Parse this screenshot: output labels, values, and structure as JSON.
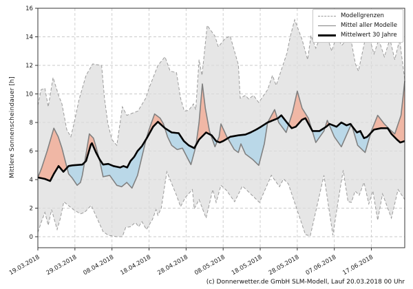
{
  "figure": {
    "ylabel": "Mittlere Sonnenscheindauer [h]",
    "caption": "(c) Donnerwetter.de GmbH SLM-Modell, Lauf 20.03.2018 00 Uhr"
  },
  "legend": {
    "items": [
      {
        "label": "Modellgrenzen",
        "style": "dashed",
        "color": "#9a9a9a"
      },
      {
        "label": "Mittel aller Modelle",
        "style": "solid",
        "color": "#808080"
      },
      {
        "label": "Mittelwert 30 Jahre",
        "style": "thick",
        "color": "#000000"
      }
    ]
  },
  "colors": {
    "model_range_fill": "#dcdcdc",
    "model_bounds_line": "#9a9a9a",
    "model_mean_line": "#808080",
    "mean_30y_line": "#000000",
    "above_normal_fill": "#f0b4a1",
    "below_normal_fill": "#b7d7e8",
    "grid": "#c9c9c9",
    "axis": "#333333"
  },
  "chart_data": {
    "type": "line",
    "title": "",
    "xlabel": "",
    "ylabel": "Mittlere Sonnenscheindauer [h]",
    "ylim": [
      0,
      16
    ],
    "y_ticks": [
      0,
      2,
      4,
      6,
      8,
      10,
      12,
      14,
      16
    ],
    "x_tick_labels": [
      "19.03.2018",
      "29.03.2018",
      "08.04.2018",
      "18.04.2018",
      "28.04.2018",
      "08.05.2018",
      "18.05.2018",
      "28.05.2018",
      "07.06.2018",
      "17.06.2018"
    ],
    "x_tick_days": [
      0,
      10,
      20,
      30,
      40,
      50,
      60,
      70,
      80,
      90
    ],
    "x_range_days": [
      0,
      99
    ],
    "grid": true,
    "legend_position": "upper right",
    "series": [
      {
        "name": "Modellgrenzen (obere Grenze)",
        "role": "upper_bound",
        "points": [
          [
            0,
            9.2
          ],
          [
            0.9,
            10.3
          ],
          [
            1.9,
            10.4
          ],
          [
            2.8,
            9.1
          ],
          [
            4.1,
            11.15
          ],
          [
            5.6,
            9.9
          ],
          [
            6.5,
            9.3
          ],
          [
            7.8,
            7.5
          ],
          [
            8.9,
            7.0
          ],
          [
            9.8,
            8.0
          ],
          [
            11.1,
            9.6
          ],
          [
            13,
            11.3
          ],
          [
            14.8,
            12.1
          ],
          [
            17.2,
            12.0
          ],
          [
            18,
            9.65
          ],
          [
            18.9,
            7.9
          ],
          [
            20,
            6.8
          ],
          [
            21.3,
            6.4
          ],
          [
            22.8,
            9.1
          ],
          [
            24,
            8.5
          ],
          [
            27,
            8.8
          ],
          [
            29.1,
            9.7
          ],
          [
            30,
            10.4
          ],
          [
            32.4,
            12.0
          ],
          [
            34.3,
            12.6
          ],
          [
            35.7,
            11.6
          ],
          [
            37.4,
            11.5
          ],
          [
            38.5,
            9.7
          ],
          [
            39.5,
            8.8
          ],
          [
            40.7,
            8.85
          ],
          [
            42,
            9.3
          ],
          [
            42.6,
            8.9
          ],
          [
            43.5,
            12.4
          ],
          [
            44.3,
            11.3
          ],
          [
            45.7,
            14.8
          ],
          [
            47.8,
            14.05
          ],
          [
            48.7,
            13.3
          ],
          [
            50.6,
            13.9
          ],
          [
            51.9,
            14.05
          ],
          [
            54.1,
            12.05
          ],
          [
            54.6,
            9.7
          ],
          [
            56,
            9.9
          ],
          [
            56.9,
            9.65
          ],
          [
            58.2,
            9.9
          ],
          [
            59.6,
            9.4
          ],
          [
            62,
            10.3
          ],
          [
            63.3,
            11.3
          ],
          [
            64.3,
            10.6
          ],
          [
            67.2,
            12.85
          ],
          [
            68.1,
            14.0
          ],
          [
            69.3,
            15.2
          ],
          [
            71.3,
            13.8
          ],
          [
            72.8,
            12.4
          ],
          [
            73.7,
            14.1
          ],
          [
            75,
            13.2
          ],
          [
            76.5,
            14.2
          ],
          [
            78.1,
            14.0
          ],
          [
            79.3,
            13.0
          ],
          [
            80.6,
            14.05
          ],
          [
            82,
            13.4
          ],
          [
            84.3,
            14.05
          ],
          [
            85.7,
            12.1
          ],
          [
            86.5,
            11.6
          ],
          [
            88.3,
            13.8
          ],
          [
            89.3,
            14.1
          ],
          [
            90.7,
            12.8
          ],
          [
            92,
            13.8
          ],
          [
            93.5,
            12.6
          ],
          [
            95,
            13.85
          ],
          [
            96.3,
            12.4
          ],
          [
            97.6,
            13.8
          ],
          [
            99,
            11.0
          ]
        ]
      },
      {
        "name": "Modellgrenzen (untere Grenze)",
        "role": "lower_bound",
        "points": [
          [
            0,
            0.3
          ],
          [
            0.9,
            1.0
          ],
          [
            1.9,
            1.7
          ],
          [
            2.8,
            0.8
          ],
          [
            3.7,
            1.9
          ],
          [
            5.2,
            0.5
          ],
          [
            6.1,
            1.3
          ],
          [
            7,
            2.45
          ],
          [
            9.6,
            1.9
          ],
          [
            11.5,
            1.6
          ],
          [
            12.6,
            1.7
          ],
          [
            14.4,
            2.2
          ],
          [
            17.6,
            0.35
          ],
          [
            19,
            0.1
          ],
          [
            21.3,
            0.0
          ],
          [
            22.8,
            0.0
          ],
          [
            23.7,
            0.65
          ],
          [
            25,
            0.7
          ],
          [
            26.3,
            1.0
          ],
          [
            27.2,
            0.7
          ],
          [
            28.1,
            1.05
          ],
          [
            29.3,
            0.5
          ],
          [
            30.9,
            1.2
          ],
          [
            31.9,
            1.9
          ],
          [
            32.4,
            1.5
          ],
          [
            33.3,
            2.0
          ],
          [
            34.8,
            4.55
          ],
          [
            37.4,
            2.9
          ],
          [
            38.5,
            2.1
          ],
          [
            39.8,
            2.75
          ],
          [
            41.7,
            3.3
          ],
          [
            42.2,
            1.95
          ],
          [
            43.5,
            2.6
          ],
          [
            45.4,
            1.3
          ],
          [
            47.2,
            3.3
          ],
          [
            48.1,
            2.4
          ],
          [
            49.4,
            3.6
          ],
          [
            50.9,
            3.25
          ],
          [
            53.1,
            2.45
          ],
          [
            55.2,
            3.55
          ],
          [
            59.8,
            2.4
          ],
          [
            63,
            4.3
          ],
          [
            65.2,
            3.5
          ],
          [
            66.3,
            4.05
          ],
          [
            67.6,
            3.7
          ],
          [
            72.2,
            0.15
          ],
          [
            73.5,
            0.05
          ],
          [
            77.2,
            4.3
          ],
          [
            79.6,
            0.1
          ],
          [
            81.1,
            2.6
          ],
          [
            82.4,
            4.65
          ],
          [
            83.7,
            2.45
          ],
          [
            84.6,
            2.4
          ],
          [
            85.6,
            3.2
          ],
          [
            86.7,
            2.9
          ],
          [
            88,
            3.8
          ],
          [
            89.3,
            2.3
          ],
          [
            90.4,
            3.2
          ],
          [
            91.7,
            1.15
          ],
          [
            93,
            3.0
          ],
          [
            95.4,
            1.3
          ],
          [
            97.2,
            3.3
          ],
          [
            99,
            2.6
          ]
        ]
      },
      {
        "name": "Mittel aller Modelle",
        "role": "model_mean",
        "points": [
          [
            0,
            4.15
          ],
          [
            1,
            4.8
          ],
          [
            2.5,
            6.0
          ],
          [
            4.3,
            7.6
          ],
          [
            5.5,
            7.0
          ],
          [
            6.5,
            6.2
          ],
          [
            7.4,
            5.3
          ],
          [
            8.3,
            4.4
          ],
          [
            9.3,
            4.1
          ],
          [
            10.6,
            3.6
          ],
          [
            11.5,
            3.8
          ],
          [
            12,
            4.3
          ],
          [
            13,
            5.8
          ],
          [
            13.9,
            7.2
          ],
          [
            15,
            6.9
          ],
          [
            15.7,
            6.3
          ],
          [
            16.7,
            5.3
          ],
          [
            17.6,
            4.2
          ],
          [
            19.4,
            4.3
          ],
          [
            21.3,
            3.6
          ],
          [
            22.6,
            3.5
          ],
          [
            24,
            3.8
          ],
          [
            25.4,
            3.4
          ],
          [
            26.9,
            4.3
          ],
          [
            28,
            5.5
          ],
          [
            29.3,
            6.9
          ],
          [
            30,
            7.5
          ],
          [
            31.5,
            8.6
          ],
          [
            33,
            8.3
          ],
          [
            33.9,
            7.9
          ],
          [
            35,
            7.0
          ],
          [
            36.1,
            6.4
          ],
          [
            37.6,
            6.1
          ],
          [
            39,
            6.2
          ],
          [
            40.2,
            5.6
          ],
          [
            41.3,
            5.05
          ],
          [
            42.6,
            6.3
          ],
          [
            43.5,
            8.0
          ],
          [
            44.4,
            10.7
          ],
          [
            45.2,
            9.0
          ],
          [
            46.3,
            7.4
          ],
          [
            47.8,
            6.3
          ],
          [
            48.9,
            7.0
          ],
          [
            49.4,
            7.9
          ],
          [
            51,
            7.0
          ],
          [
            53,
            6.1
          ],
          [
            54.1,
            5.9
          ],
          [
            54.8,
            6.5
          ],
          [
            56,
            5.8
          ],
          [
            58,
            5.4
          ],
          [
            59.6,
            5.0
          ],
          [
            61.1,
            6.5
          ],
          [
            62,
            8.0
          ],
          [
            63.9,
            8.9
          ],
          [
            65,
            8.0
          ],
          [
            67,
            7.3
          ],
          [
            68.7,
            8.7
          ],
          [
            70,
            10.2
          ],
          [
            71.3,
            9.0
          ],
          [
            73,
            8.3
          ],
          [
            75,
            6.6
          ],
          [
            77.2,
            7.4
          ],
          [
            78.1,
            8.15
          ],
          [
            80,
            7.0
          ],
          [
            81.9,
            6.3
          ],
          [
            84.6,
            7.9
          ],
          [
            86.3,
            6.4
          ],
          [
            88.3,
            5.9
          ],
          [
            90,
            7.4
          ],
          [
            91.7,
            8.5
          ],
          [
            93.5,
            7.9
          ],
          [
            95,
            7.5
          ],
          [
            96.3,
            7.2
          ],
          [
            98,
            8.5
          ],
          [
            99,
            10.9
          ]
        ]
      },
      {
        "name": "Mittelwert 30 Jahre",
        "role": "mean_30y",
        "points": [
          [
            0,
            4.15
          ],
          [
            1.9,
            4.05
          ],
          [
            3.3,
            3.9
          ],
          [
            4.3,
            4.4
          ],
          [
            5.6,
            4.95
          ],
          [
            6.9,
            4.55
          ],
          [
            8.3,
            4.95
          ],
          [
            9.3,
            5.0
          ],
          [
            12,
            5.05
          ],
          [
            13,
            5.3
          ],
          [
            14.3,
            6.45
          ],
          [
            14.6,
            6.55
          ],
          [
            15.7,
            5.9
          ],
          [
            16.7,
            5.4
          ],
          [
            17.6,
            5.05
          ],
          [
            19,
            5.1
          ],
          [
            20.4,
            4.95
          ],
          [
            22.2,
            4.85
          ],
          [
            23.1,
            4.95
          ],
          [
            24.1,
            4.85
          ],
          [
            25,
            5.3
          ],
          [
            26,
            5.6
          ],
          [
            26.9,
            6.0
          ],
          [
            28.1,
            6.35
          ],
          [
            29.6,
            7.0
          ],
          [
            31.1,
            7.7
          ],
          [
            32.4,
            8.05
          ],
          [
            34.3,
            7.6
          ],
          [
            36.1,
            7.3
          ],
          [
            38,
            7.25
          ],
          [
            39.4,
            6.7
          ],
          [
            40.7,
            6.4
          ],
          [
            42.2,
            6.2
          ],
          [
            43.5,
            6.8
          ],
          [
            45.4,
            7.3
          ],
          [
            46.9,
            7.1
          ],
          [
            48.1,
            6.7
          ],
          [
            49.1,
            6.6
          ],
          [
            50,
            6.7
          ],
          [
            51.9,
            7.0
          ],
          [
            54.1,
            7.1
          ],
          [
            56,
            7.15
          ],
          [
            57.4,
            7.3
          ],
          [
            58.9,
            7.5
          ],
          [
            60.2,
            7.7
          ],
          [
            62,
            8.0
          ],
          [
            64.8,
            8.3
          ],
          [
            65.7,
            8.5
          ],
          [
            67.2,
            8.0
          ],
          [
            68.5,
            7.6
          ],
          [
            69.6,
            7.7
          ],
          [
            71.3,
            8.2
          ],
          [
            72.2,
            8.3
          ],
          [
            74.1,
            7.4
          ],
          [
            76,
            7.4
          ],
          [
            77.8,
            7.7
          ],
          [
            78.7,
            7.9
          ],
          [
            80.6,
            7.7
          ],
          [
            81.9,
            8.0
          ],
          [
            83.3,
            7.8
          ],
          [
            84.3,
            7.9
          ],
          [
            86.1,
            7.3
          ],
          [
            87,
            7.4
          ],
          [
            88,
            6.9
          ],
          [
            88.9,
            7.0
          ],
          [
            90.7,
            7.5
          ],
          [
            92.6,
            7.6
          ],
          [
            94.4,
            7.6
          ],
          [
            95.4,
            7.2
          ],
          [
            96.9,
            6.8
          ],
          [
            97.8,
            6.6
          ],
          [
            99,
            6.7
          ]
        ]
      }
    ]
  }
}
